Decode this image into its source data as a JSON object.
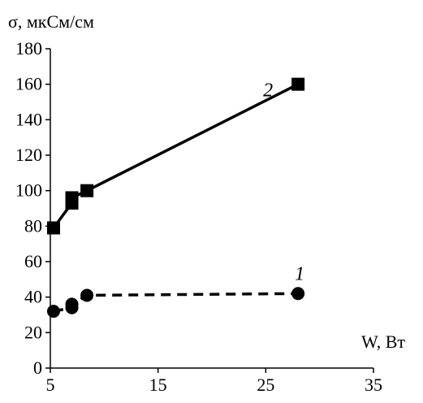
{
  "chart_data": {
    "type": "line",
    "title": "",
    "xlabel": "W, Вт",
    "ylabel": "σ, мкСм/см",
    "xlim": [
      5,
      35
    ],
    "ylim": [
      0,
      180
    ],
    "x_ticks": [
      5,
      15,
      25,
      35
    ],
    "y_ticks": [
      0,
      20,
      40,
      60,
      80,
      100,
      120,
      140,
      160,
      180
    ],
    "grid": false,
    "legend": "none",
    "series": [
      {
        "label": "2",
        "marker": "square",
        "line_style": "solid",
        "color": "#000000",
        "points": [
          {
            "x": 5.3,
            "y": 79
          },
          {
            "x": 7.0,
            "y": 93
          },
          {
            "x": 7.0,
            "y": 96
          },
          {
            "x": 8.4,
            "y": 100
          },
          {
            "x": 28.0,
            "y": 160
          }
        ]
      },
      {
        "label": "1",
        "marker": "circle",
        "line_style": "dashed",
        "color": "#000000",
        "points": [
          {
            "x": 5.3,
            "y": 32
          },
          {
            "x": 7.0,
            "y": 34
          },
          {
            "x": 7.0,
            "y": 36
          },
          {
            "x": 8.4,
            "y": 41
          },
          {
            "x": 28.0,
            "y": 42
          }
        ]
      }
    ]
  }
}
